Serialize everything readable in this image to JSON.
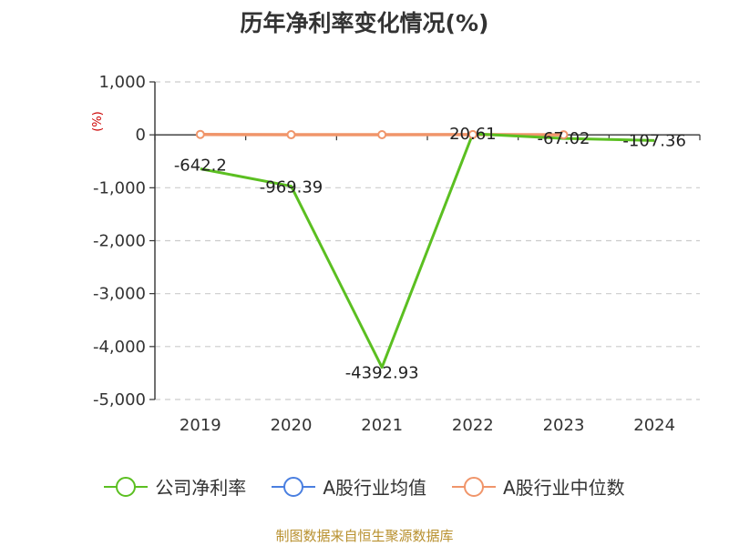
{
  "chart_data": {
    "type": "line",
    "title": "历年净利率变化情况(%)",
    "unit_label": "(%)",
    "categories": [
      "2019",
      "2020",
      "2021",
      "2022",
      "2023",
      "2024"
    ],
    "ylim": [
      -5000,
      1000
    ],
    "yticks": [
      1000,
      0,
      -1000,
      -2000,
      -3000,
      -4000,
      -5000
    ],
    "ytick_labels": [
      "1,000",
      "0",
      "-1,000",
      "-2,000",
      "-3,000",
      "-4,000",
      "-5,000"
    ],
    "grid": true,
    "legend_position": "bottom",
    "series": [
      {
        "name": "公司净利率",
        "color": "#5bbf21",
        "values": [
          -642.2,
          -969.39,
          -4392.93,
          20.61,
          -67.02,
          -107.36
        ],
        "labels": [
          "-642.2",
          "-969.39",
          "-4392.93",
          "20.61",
          "-67.02",
          "-107.36"
        ]
      },
      {
        "name": "A股行业均值",
        "color": "#4a7fe0",
        "values": [
          null,
          null,
          null,
          null,
          null,
          null
        ]
      },
      {
        "name": "A股行业中位数",
        "color": "#f0956a",
        "values": [
          8,
          2,
          3,
          5,
          1,
          null
        ]
      }
    ]
  },
  "source": "制图数据来自恒生聚源数据库"
}
